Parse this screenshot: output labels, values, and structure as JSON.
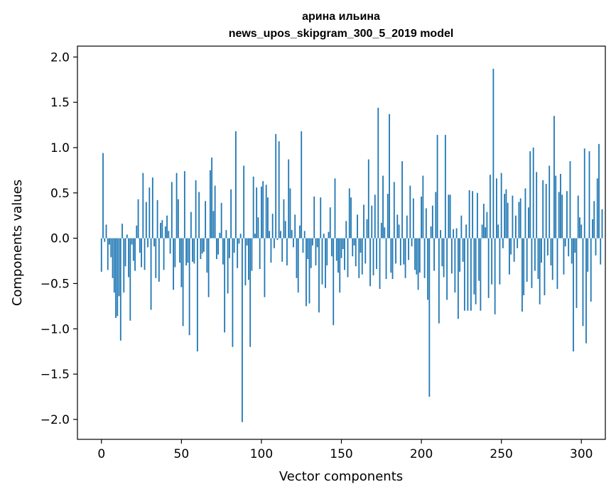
{
  "chart_data": {
    "type": "bar",
    "title": [
      "арина ильина",
      "news_upos_skipgram_300_5_2019 model"
    ],
    "xlabel": "Vector components",
    "ylabel": "Components values",
    "xlim": [
      -15,
      315
    ],
    "ylim": [
      -2.22,
      2.12
    ],
    "xticks": [
      0,
      50,
      100,
      150,
      200,
      250,
      300
    ],
    "yticks": [
      -2.0,
      -1.5,
      -1.0,
      -0.5,
      0.0,
      0.5,
      1.0,
      1.5,
      2.0
    ],
    "ytick_labels": [
      "−2.0",
      "−1.5",
      "−1.0",
      "−0.5",
      "0.0",
      "0.5",
      "1.0",
      "1.5",
      "2.0"
    ],
    "grid": false,
    "bar_color": "#1f77b4",
    "values": [
      -0.37,
      0.94,
      -0.04,
      0.15,
      -0.35,
      -0.07,
      -0.21,
      -0.44,
      -0.6,
      -0.88,
      -0.86,
      -0.64,
      -1.13,
      0.16,
      -0.6,
      -0.31,
      0.04,
      -0.43,
      -0.91,
      -0.07,
      -0.25,
      -0.36,
      0.14,
      0.43,
      -0.16,
      -0.32,
      0.72,
      -0.35,
      0.4,
      -0.1,
      0.56,
      -0.79,
      0.67,
      -0.09,
      -0.44,
      0.42,
      -0.48,
      0.17,
      0.2,
      -0.35,
      0.13,
      0.25,
      0.08,
      -0.17,
      0.62,
      -0.57,
      -0.32,
      0.72,
      0.43,
      -0.27,
      -0.54,
      -0.97,
      0.74,
      -0.3,
      -0.27,
      -1.07,
      0.29,
      -0.26,
      -0.28,
      0.64,
      -1.25,
      0.51,
      -0.23,
      -0.17,
      -0.15,
      0.41,
      -0.38,
      -0.65,
      0.75,
      0.89,
      0.3,
      0.58,
      -0.23,
      -0.18,
      0.06,
      0.39,
      -0.29,
      -1.04,
      0.09,
      -0.61,
      -0.22,
      0.54,
      -1.2,
      -0.16,
      1.18,
      -0.33,
      -0.06,
      0.05,
      -2.03,
      0.8,
      -0.52,
      -0.08,
      -0.46,
      -1.2,
      -0.36,
      0.68,
      0.05,
      0.56,
      0.23,
      -0.34,
      0.57,
      0.63,
      -0.65,
      0.59,
      0.45,
      0.08,
      -0.27,
      0.27,
      -0.11,
      1.15,
      -0.02,
      1.07,
      0.08,
      -0.26,
      0.43,
      0.19,
      -0.3,
      0.87,
      0.55,
      0.09,
      -0.1,
      0.26,
      -0.44,
      -0.6,
      0.14,
      1.18,
      -0.16,
      0.08,
      -0.75,
      -0.23,
      -0.72,
      -0.33,
      -0.08,
      0.46,
      -0.3,
      -0.1,
      -0.82,
      0.45,
      -0.51,
      0.05,
      -0.55,
      -0.3,
      0.07,
      0.34,
      -0.2,
      -0.96,
      0.66,
      -0.25,
      -0.38,
      -0.6,
      -0.22,
      -0.12,
      -0.35,
      0.19,
      -0.43,
      0.55,
      0.45,
      -0.2,
      -0.08,
      -0.31,
      0.26,
      -0.44,
      -0.16,
      -0.4,
      0.37,
      -0.28,
      0.21,
      0.87,
      -0.53,
      0.36,
      -0.41,
      0.48,
      -0.34,
      1.44,
      -0.56,
      0.17,
      0.69,
      0.12,
      -0.45,
      0.49,
      1.37,
      -0.38,
      -0.45,
      0.62,
      -0.28,
      0.26,
      0.15,
      -0.3,
      0.85,
      -0.29,
      -0.44,
      0.25,
      -0.24,
      0.58,
      -0.09,
      0.44,
      -0.35,
      -0.4,
      -0.57,
      -0.38,
      0.46,
      0.69,
      -0.44,
      0.33,
      -0.68,
      -1.75,
      0.13,
      0.36,
      -0.36,
      0.51,
      1.14,
      -0.94,
      0.09,
      -0.31,
      -0.43,
      1.14,
      -0.68,
      0.48,
      0.48,
      -0.39,
      0.1,
      -0.6,
      0.11,
      -0.89,
      -0.37,
      0.25,
      -0.26,
      -0.8,
      0.15,
      -0.8,
      0.53,
      -0.8,
      0.52,
      -0.62,
      -0.73,
      0.5,
      -0.47,
      -0.8,
      0.15,
      0.38,
      0.12,
      0.29,
      -0.66,
      0.7,
      -0.51,
      1.87,
      -0.84,
      0.66,
      0.15,
      -0.51,
      0.72,
      -0.11,
      0.49,
      0.54,
      0.39,
      -0.4,
      -0.18,
      0.47,
      -0.26,
      0.25,
      -0.11,
      0.4,
      0.44,
      -0.81,
      -0.63,
      0.55,
      -0.48,
      0.34,
      0.96,
      -0.55,
      1.0,
      -0.36,
      0.73,
      -0.45,
      -0.73,
      -0.27,
      0.64,
      -0.63,
      0.6,
      -0.19,
      0.8,
      -0.3,
      -0.46,
      1.35,
      0.69,
      -0.56,
      0.51,
      0.71,
      0.48,
      -0.4,
      -0.09,
      0.52,
      -0.2,
      0.85,
      -0.28,
      -1.25,
      -0.16,
      -0.77,
      0.47,
      0.23,
      0.15,
      -0.97,
      0.99,
      -1.16,
      -0.37,
      0.96,
      -0.7,
      0.21,
      0.41,
      -0.19,
      0.66,
      1.04,
      -0.29,
      0.32
    ]
  }
}
